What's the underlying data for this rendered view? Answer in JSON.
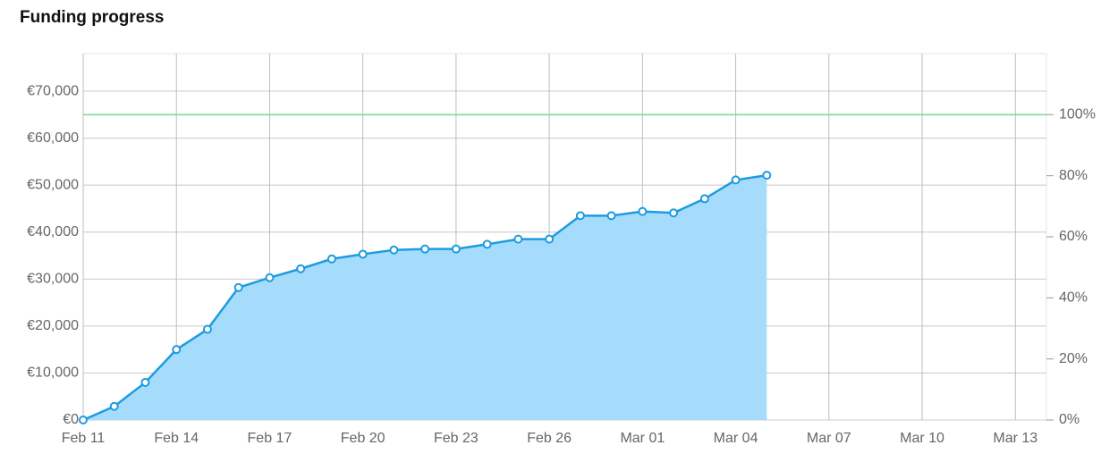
{
  "chart_data": {
    "type": "area",
    "title": "Funding progress",
    "x": [
      "Feb 11",
      "Feb 12",
      "Feb 13",
      "Feb 14",
      "Feb 15",
      "Feb 16",
      "Feb 17",
      "Feb 18",
      "Feb 19",
      "Feb 20",
      "Feb 21",
      "Feb 22",
      "Feb 23",
      "Feb 24",
      "Feb 25",
      "Feb 26",
      "Feb 27",
      "Feb 28",
      "Mar 01",
      "Mar 02",
      "Mar 03",
      "Mar 04",
      "Mar 05"
    ],
    "series": [
      {
        "color": "#1e9be0",
        "fill": "#a6dcfb",
        "values": [
          0,
          2900,
          8000,
          15000,
          19300,
          28200,
          30300,
          32200,
          34300,
          35300,
          36200,
          36400,
          36400,
          37400,
          38500,
          38500,
          43500,
          43500,
          44400,
          44100,
          47100,
          51100,
          52100
        ]
      }
    ],
    "reference_line": {
      "value": 65000,
      "color": "#6fdc8c"
    },
    "xlim": [
      "Feb 11",
      "Mar 14"
    ],
    "xticks": [
      "Feb 11",
      "Feb 14",
      "Feb 17",
      "Feb 20",
      "Feb 23",
      "Feb 26",
      "Mar 01",
      "Mar 04",
      "Mar 07",
      "Mar 10",
      "Mar 13"
    ],
    "ylim": [
      0,
      78000
    ],
    "yticks": [
      {
        "value": 0,
        "label": "€0"
      },
      {
        "value": 10000,
        "label": "€10,000"
      },
      {
        "value": 20000,
        "label": "€20,000"
      },
      {
        "value": 30000,
        "label": "€30,000"
      },
      {
        "value": 40000,
        "label": "€40,000"
      },
      {
        "value": 50000,
        "label": "€50,000"
      },
      {
        "value": 60000,
        "label": "€60,000"
      },
      {
        "value": 70000,
        "label": "€70,000"
      }
    ],
    "y2lim": [
      0,
      120
    ],
    "y2ticks": [
      {
        "value": 0,
        "label": "0%"
      },
      {
        "value": 20,
        "label": "20%"
      },
      {
        "value": 40,
        "label": "40%"
      },
      {
        "value": 60,
        "label": "60%"
      },
      {
        "value": 80,
        "label": "80%"
      },
      {
        "value": 100,
        "label": "100%"
      }
    ],
    "grid": true
  }
}
